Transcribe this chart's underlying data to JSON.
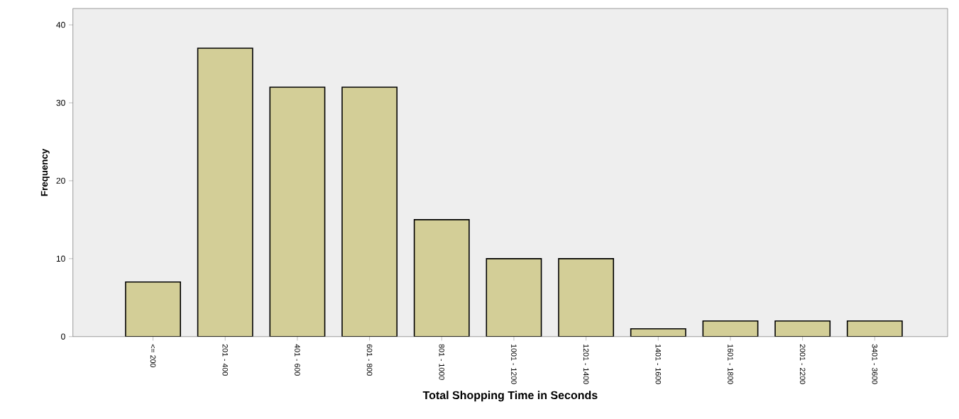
{
  "chart_data": {
    "type": "bar",
    "xlabel": "Total Shopping Time in Seconds",
    "ylabel": "Frequency",
    "categories": [
      "<= 200",
      "201 - 400",
      "401 - 600",
      "601 - 800",
      "801 - 1000",
      "1001 - 1200",
      "1201 - 1400",
      "1401 - 1600",
      "1601 - 1800",
      "2001 - 2200",
      "3401 - 3600"
    ],
    "values": [
      7,
      37,
      32,
      32,
      15,
      10,
      10,
      1,
      2,
      2,
      2
    ],
    "color": "#d3ce97",
    "ylim": [
      0,
      42.1
    ],
    "yticks": [
      0,
      10,
      20,
      30,
      40
    ]
  }
}
